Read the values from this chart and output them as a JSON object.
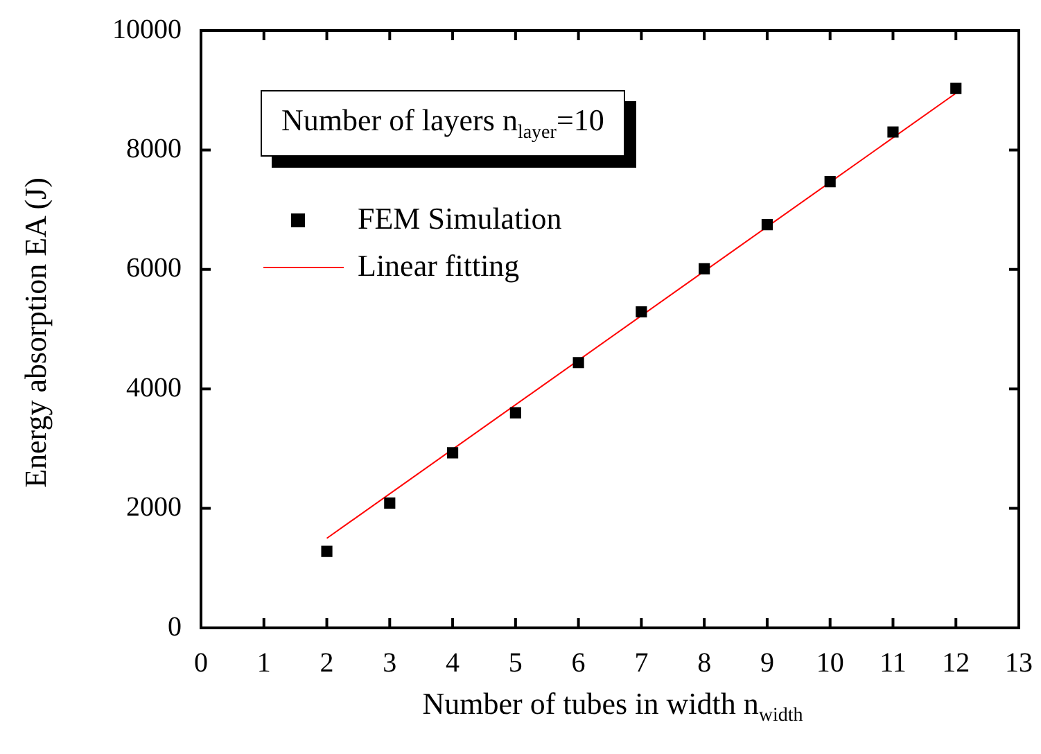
{
  "chart_data": {
    "type": "scatter",
    "xlabel": "Number of tubes in width n$_{width}$",
    "ylabel": "Energy absorption EA (J)",
    "annotations": [
      "Number of layers n$_{layer}$=10"
    ],
    "x": [
      2,
      3,
      4,
      5,
      6,
      7,
      8,
      9,
      10,
      11,
      12
    ],
    "series": [
      {
        "name": "FEM Simulation",
        "color": "#000000",
        "marker": "square",
        "values": [
          1280,
          2090,
          2930,
          3600,
          4440,
          5290,
          6010,
          6750,
          7470,
          8300,
          9030
        ]
      },
      {
        "name": "Linear fitting",
        "type": "line",
        "color": "#ff0000",
        "marker": "none",
        "line_style": "solid",
        "x": [
          2,
          12
        ],
        "values": [
          1500,
          8950
        ]
      }
    ],
    "xlim": [
      0,
      13
    ],
    "xticks": [
      0,
      1,
      2,
      3,
      4,
      5,
      6,
      7,
      8,
      9,
      10,
      11,
      12,
      13
    ],
    "ylim": [
      0,
      10000
    ],
    "yticks": [
      0,
      2000,
      4000,
      6000,
      8000,
      10000
    ],
    "grid": false,
    "legend": "top left"
  }
}
